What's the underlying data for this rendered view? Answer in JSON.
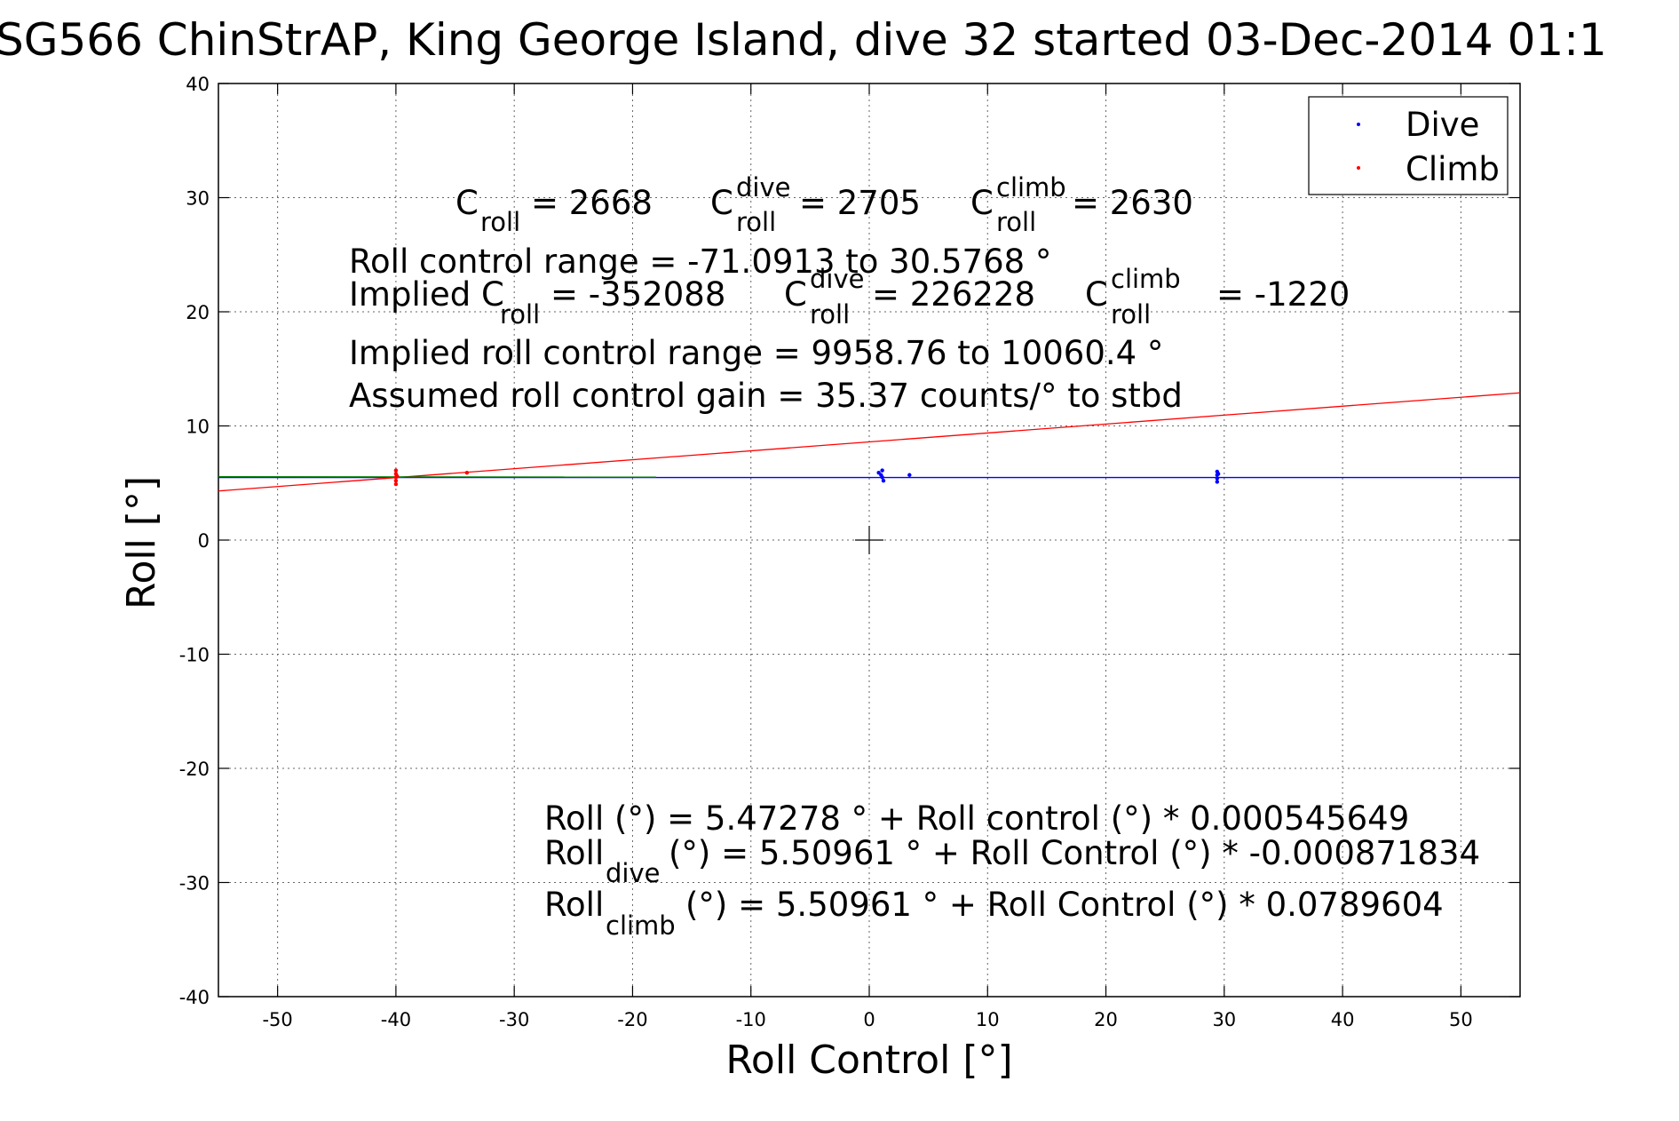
{
  "chart_data": {
    "type": "scatter",
    "title": "SG566 ChinStrAP, King George Island, dive 32 started 03-Dec-2014 01:1",
    "xlabel": "Roll Control [°]",
    "ylabel": "Roll [°]",
    "xlim": [
      -55,
      55
    ],
    "ylim": [
      -40,
      40
    ],
    "x_ticks": [
      -50,
      -40,
      -30,
      -20,
      -10,
      0,
      10,
      20,
      30,
      40,
      50
    ],
    "y_ticks": [
      -40,
      -30,
      -20,
      -10,
      0,
      10,
      20,
      30,
      40
    ],
    "grid": true,
    "legend_position": "top-right",
    "legend": [
      {
        "label": "Dive",
        "color": "#0000ff"
      },
      {
        "label": "Climb",
        "color": "#ff0000"
      }
    ],
    "series": [
      {
        "name": "Dive",
        "color": "#0000ff",
        "points": [
          {
            "x": 0.8,
            "y": 5.9
          },
          {
            "x": 1.0,
            "y": 5.7
          },
          {
            "x": 1.1,
            "y": 5.5
          },
          {
            "x": 1.2,
            "y": 5.2
          },
          {
            "x": 1.1,
            "y": 6.1
          },
          {
            "x": 3.4,
            "y": 5.7
          },
          {
            "x": 29.4,
            "y": 6.0
          },
          {
            "x": 29.4,
            "y": 5.7
          },
          {
            "x": 29.4,
            "y": 5.4
          },
          {
            "x": 29.4,
            "y": 5.1
          },
          {
            "x": 29.5,
            "y": 5.8
          }
        ]
      },
      {
        "name": "Climb",
        "color": "#ff0000",
        "points": [
          {
            "x": -40.0,
            "y": 6.1
          },
          {
            "x": -40.0,
            "y": 5.8
          },
          {
            "x": -40.0,
            "y": 5.5
          },
          {
            "x": -40.0,
            "y": 5.2
          },
          {
            "x": -40.0,
            "y": 4.9
          },
          {
            "x": -39.9,
            "y": 5.6
          },
          {
            "x": -34.0,
            "y": 5.9
          }
        ]
      }
    ],
    "fit_lines": [
      {
        "color": "#0000ff",
        "x": [
          -55,
          55
        ],
        "y": [
          5.48,
          5.48
        ]
      },
      {
        "color": "#ff0000",
        "x": [
          -55,
          55
        ],
        "y": [
          4.3,
          12.9
        ]
      },
      {
        "color": "#008000",
        "x": [
          -55,
          -18
        ],
        "y": [
          5.55,
          5.52
        ]
      }
    ],
    "crosshair": {
      "x": 0,
      "y": 0
    },
    "annotations": {
      "c_roll": "= 2668",
      "c_dive": "= 2705",
      "c_climb": "= 2630",
      "line_range": "Roll control range = -71.0913 to 30.5768 °",
      "implied_c_roll": "= -352088",
      "implied_c_dive": "= 226228",
      "implied_c_climb": "= -1220",
      "implied_range": "Implied roll control range = 9958.76 to 10060.4 °",
      "gain": "Assumed roll control gain = 35.37 counts/° to stbd",
      "eq1": "Roll (°) = 5.47278 ° + Roll control (°) * 0.000545649",
      "eq2": "(°) = 5.50961 ° + Roll Control (°) * -0.000871834",
      "eq3": "(°) = 5.50961 ° + Roll Control (°) * 0.0789604",
      "sym_C": "C",
      "sym_roll_word": "Roll",
      "implied_prefix": "Implied C",
      "sub_roll": "roll",
      "sub_dive": "dive",
      "sub_climb": "climb",
      "sup_dive": "dive",
      "sup_climb": "climb"
    }
  }
}
